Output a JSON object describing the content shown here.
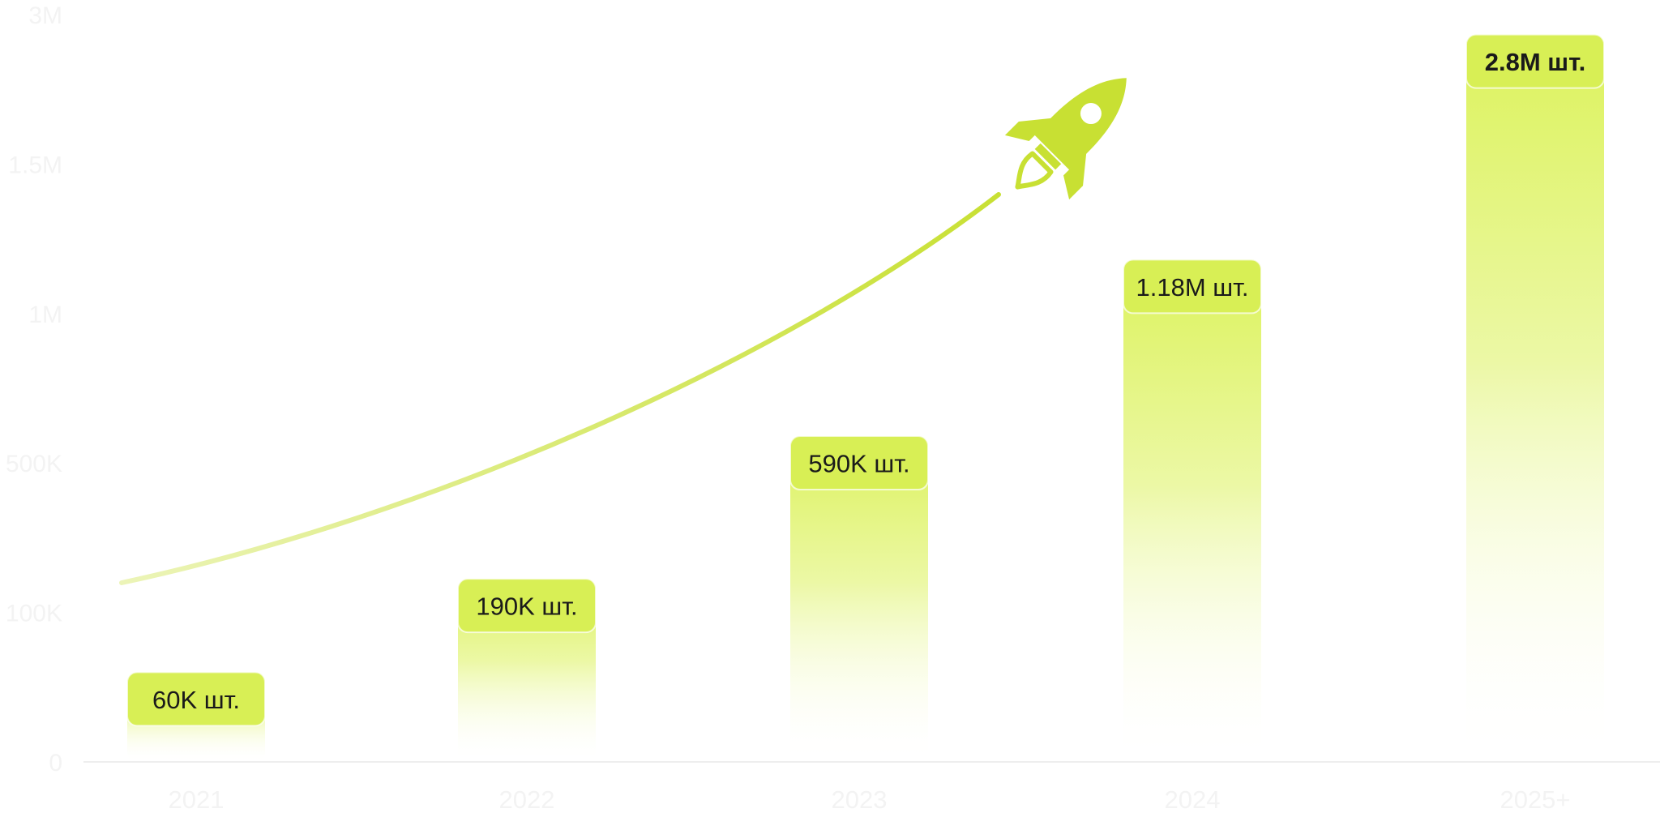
{
  "colors": {
    "accent": "#c8e033",
    "bar_top": "#dcf25c",
    "bar_fade": "#ffffff",
    "label_bg": "#d8ef55",
    "axis_text": "#f3f3f3",
    "label_text": "#1a1a1a"
  },
  "icons": {
    "rocket": "rocket-icon"
  },
  "chart_data": {
    "type": "bar",
    "title": "",
    "xlabel": "",
    "ylabel": "",
    "categories": [
      "2021",
      "2022",
      "2023",
      "2024",
      "2025+"
    ],
    "values": [
      60000,
      190000,
      590000,
      1180000,
      2800000
    ],
    "data_labels": [
      "60K шт.",
      "190K шт.",
      "590K шт.",
      "1.18M шт.",
      "2.8M шт."
    ],
    "y_ticks": [
      {
        "value": 0,
        "label": "0"
      },
      {
        "value": 100000,
        "label": "100K"
      },
      {
        "value": 500000,
        "label": "500K"
      },
      {
        "value": 1000000,
        "label": "1M"
      },
      {
        "value": 1500000,
        "label": "1.5M"
      },
      {
        "value": 3000000,
        "label": "3M"
      }
    ],
    "y_scale": "non-linear (tick spacing equal)",
    "ylim": [
      0,
      3000000
    ],
    "grid": false,
    "legend": "none",
    "trend_line": true
  }
}
